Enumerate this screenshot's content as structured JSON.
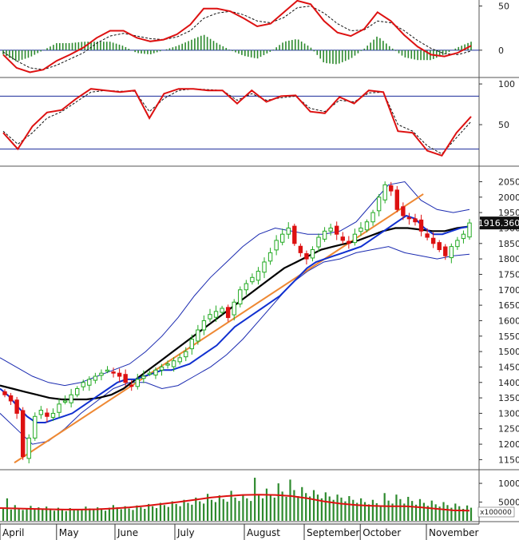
{
  "chart_data": {
    "type": "candlestick-with-indicators",
    "x_axis": {
      "months": [
        "April",
        "May",
        "June",
        "July",
        "August",
        "September",
        "October",
        "November"
      ]
    },
    "panels": [
      {
        "name": "macd",
        "type": "line-with-histogram",
        "ylim": [
          -30,
          55
        ],
        "ticks": [
          50,
          0
        ],
        "series": [
          {
            "role": "main",
            "color": "#dd1111",
            "values": [
              -5,
              -20,
              -25,
              -22,
              -12,
              -5,
              3,
              14,
              22,
              22,
              14,
              10,
              12,
              18,
              29,
              47,
              47,
              44,
              36,
              27,
              30,
              43,
              56,
              52,
              33,
              20,
              16,
              24,
              43,
              33,
              17,
              4,
              -5,
              -7,
              -3,
              5
            ]
          },
          {
            "role": "signal",
            "color": "#111111",
            "values": [
              -2,
              -12,
              -20,
              -22,
              -17,
              -10,
              -3,
              8,
              16,
              19,
              16,
              13,
              12,
              15,
              22,
              36,
              42,
              44,
              40,
              33,
              31,
              37,
              48,
              50,
              42,
              30,
              22,
              23,
              33,
              31,
              22,
              11,
              2,
              -4,
              -5,
              -1
            ]
          }
        ],
        "histogram_color": "#2d8a2d"
      },
      {
        "name": "stochastic",
        "type": "line",
        "ylim": [
          0,
          105
        ],
        "ticks": [
          100,
          50
        ],
        "reference_lines": [
          85,
          20
        ],
        "series": [
          {
            "role": "k",
            "color": "#dd1111",
            "values": [
              40,
              20,
              48,
              65,
              68,
              82,
              94,
              92,
              90,
              92,
              58,
              88,
              94,
              94,
              92,
              92,
              76,
              92,
              78,
              85,
              86,
              66,
              64,
              84,
              76,
              92,
              90,
              42,
              40,
              18,
              12,
              40,
              60
            ]
          },
          {
            "role": "d",
            "color": "#111111",
            "values": [
              42,
              26,
              40,
              58,
              66,
              78,
              90,
              92,
              91,
              91,
              66,
              82,
              92,
              94,
              93,
              92,
              80,
              88,
              80,
              83,
              85,
              70,
              66,
              80,
              78,
              89,
              90,
              50,
              42,
              24,
              14,
              34,
              54
            ]
          }
        ]
      },
      {
        "name": "price",
        "type": "candlestick",
        "ylim": [
          1120,
          2090
        ],
        "ticks": [
          2050,
          2000,
          1950,
          1900,
          1850,
          1800,
          1750,
          1700,
          1650,
          1600,
          1550,
          1500,
          1450,
          1400,
          1350,
          1300,
          1250,
          1200,
          1150
        ],
        "last_price": "1916.360",
        "close": [
          1360,
          1340,
          1300,
          1160,
          1220,
          1290,
          1310,
          1290,
          1300,
          1330,
          1340,
          1360,
          1380,
          1400,
          1410,
          1420,
          1430,
          1440,
          1430,
          1420,
          1400,
          1390,
          1410,
          1420,
          1430,
          1440,
          1450,
          1460,
          1470,
          1480,
          1500,
          1540,
          1570,
          1600,
          1620,
          1630,
          1640,
          1610,
          1660,
          1700,
          1720,
          1740,
          1760,
          1790,
          1820,
          1860,
          1880,
          1900,
          1850,
          1820,
          1800,
          1830,
          1870,
          1890,
          1900,
          1880,
          1860,
          1850,
          1880,
          1900,
          1920,
          1950,
          2000,
          2040,
          2020,
          1960,
          1940,
          1930,
          1920,
          1890,
          1870,
          1850,
          1830,
          1810,
          1840,
          1860,
          1880,
          1916.36
        ],
        "sma20": [
          1380,
          1355,
          1320,
          1290,
          1270,
          1270,
          1280,
          1290,
          1300,
          1320,
          1340,
          1360,
          1380,
          1400,
          1410,
          1410,
          1420,
          1430,
          1440,
          1440,
          1450,
          1460,
          1480,
          1500,
          1520,
          1550,
          1580,
          1600,
          1620,
          1640,
          1660,
          1680,
          1710,
          1740,
          1770,
          1790,
          1800,
          1810,
          1820,
          1830,
          1840,
          1860,
          1880,
          1900,
          1920,
          1940,
          1930,
          1900,
          1880,
          1880,
          1890,
          1900,
          1905
        ],
        "sma50": [
          1390,
          1380,
          1370,
          1360,
          1350,
          1345,
          1345,
          1345,
          1350,
          1360,
          1380,
          1410,
          1440,
          1470,
          1500,
          1530,
          1560,
          1590,
          1620,
          1650,
          1680,
          1710,
          1740,
          1770,
          1790,
          1810,
          1830,
          1840,
          1850,
          1860,
          1875,
          1890,
          1900,
          1900,
          1895,
          1890,
          1890,
          1900,
          1905
        ],
        "bollinger_upper": [
          1480,
          1450,
          1420,
          1400,
          1390,
          1400,
          1420,
          1440,
          1460,
          1500,
          1550,
          1610,
          1680,
          1740,
          1790,
          1840,
          1880,
          1900,
          1890,
          1880,
          1880,
          1890,
          1920,
          1980,
          2040,
          2050,
          1990,
          1960,
          1950,
          1960
        ],
        "bollinger_lower": [
          1300,
          1250,
          1200,
          1210,
          1250,
          1300,
          1340,
          1380,
          1400,
          1400,
          1380,
          1390,
          1420,
          1450,
          1490,
          1540,
          1600,
          1660,
          1720,
          1760,
          1790,
          1800,
          1820,
          1830,
          1840,
          1820,
          1810,
          1800,
          1810,
          1815
        ],
        "trendline": {
          "from": [
            0,
            1140
          ],
          "to": [
            0.88,
            2010
          ],
          "color": "#ee8833"
        }
      },
      {
        "name": "volume",
        "type": "bar",
        "ylim": [
          0,
          13000
        ],
        "ticks": [
          10000,
          5000
        ],
        "unit_label": "x100000",
        "values": [
          3500,
          6000,
          3000,
          4200,
          3100,
          2900,
          3400,
          4000,
          3300,
          3600,
          3000,
          3800,
          3300,
          2700,
          3500,
          3100,
          2600,
          3400,
          3000,
          2900,
          3200,
          3800,
          3300,
          2900,
          3600,
          3100,
          2700,
          3500,
          4200,
          3600,
          3100,
          3900,
          3300,
          2900,
          4100,
          3600,
          3200,
          4500,
          3900,
          3400,
          4800,
          4200,
          3700,
          5200,
          4500,
          3900,
          5600,
          4800,
          4300,
          6200,
          5200,
          4600,
          7200,
          5600,
          5000,
          6800,
          5800,
          5100,
          8000,
          6200,
          5300,
          7000,
          6000,
          5300,
          11500,
          6800,
          6000,
          8600,
          7000,
          6200,
          10000,
          7800,
          6400,
          11000,
          8200,
          6600,
          9000,
          7400,
          6500,
          8200,
          7000,
          6000,
          7600,
          6500,
          5600,
          7000,
          6200,
          5200,
          6600,
          5600,
          4800,
          6000,
          5000,
          4400,
          5600,
          4700,
          4000,
          7400,
          5400,
          4600,
          7000,
          5800,
          4600,
          6400,
          5300,
          4300,
          5800,
          4800,
          4000,
          5400,
          4400,
          3800,
          5000,
          4200,
          3500,
          4600,
          3900,
          3200,
          4100,
          3500
        ],
        "ma_line": [
          3400,
          3300,
          3200,
          3100,
          3000,
          3000,
          3100,
          3300,
          3600,
          4000,
          4500,
          5000,
          5600,
          6200,
          6600,
          6900,
          7000,
          6900,
          6600,
          6000,
          5200,
          4600,
          4200,
          4000,
          3900,
          3900,
          3600,
          3200,
          2800,
          2700
        ]
      }
    ]
  }
}
